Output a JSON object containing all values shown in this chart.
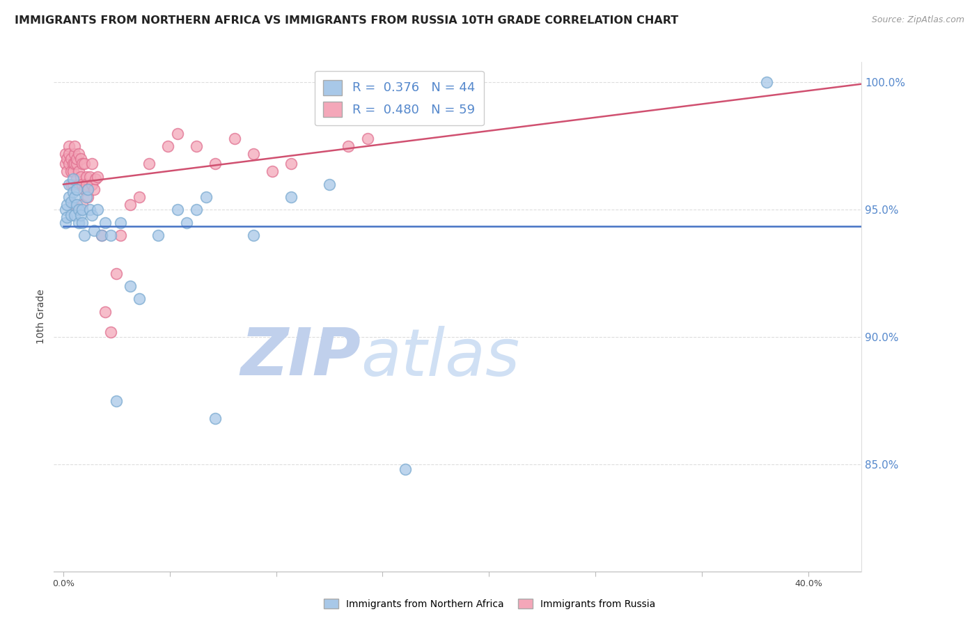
{
  "title": "IMMIGRANTS FROM NORTHERN AFRICA VS IMMIGRANTS FROM RUSSIA 10TH GRADE CORRELATION CHART",
  "source": "Source: ZipAtlas.com",
  "ylabel": "10th Grade",
  "watermark_zip": "ZIP",
  "watermark_atlas": "atlas",
  "series": [
    {
      "name": "Immigrants from Northern Africa",
      "R": 0.376,
      "N": 44,
      "color": "#A8C8E8",
      "edge_color": "#7AAAD0",
      "line_color": "#4472C4",
      "x": [
        0.001,
        0.001,
        0.002,
        0.002,
        0.003,
        0.003,
        0.004,
        0.004,
        0.005,
        0.005,
        0.006,
        0.006,
        0.007,
        0.007,
        0.008,
        0.008,
        0.009,
        0.01,
        0.01,
        0.011,
        0.012,
        0.013,
        0.014,
        0.015,
        0.016,
        0.018,
        0.02,
        0.022,
        0.025,
        0.028,
        0.03,
        0.035,
        0.04,
        0.05,
        0.06,
        0.065,
        0.07,
        0.075,
        0.08,
        0.1,
        0.12,
        0.14,
        0.18,
        0.37
      ],
      "y": [
        0.95,
        0.945,
        0.952,
        0.947,
        0.955,
        0.96,
        0.953,
        0.948,
        0.957,
        0.962,
        0.955,
        0.948,
        0.952,
        0.958,
        0.945,
        0.95,
        0.948,
        0.945,
        0.95,
        0.94,
        0.955,
        0.958,
        0.95,
        0.948,
        0.942,
        0.95,
        0.94,
        0.945,
        0.94,
        0.875,
        0.945,
        0.92,
        0.915,
        0.94,
        0.95,
        0.945,
        0.95,
        0.955,
        0.868,
        0.94,
        0.955,
        0.96,
        0.848,
        1.0
      ]
    },
    {
      "name": "Immigrants from Russia",
      "R": 0.48,
      "N": 59,
      "color": "#F4A7B9",
      "edge_color": "#E07090",
      "line_color": "#D05070",
      "x": [
        0.001,
        0.001,
        0.002,
        0.002,
        0.003,
        0.003,
        0.003,
        0.004,
        0.004,
        0.004,
        0.005,
        0.005,
        0.005,
        0.005,
        0.006,
        0.006,
        0.006,
        0.007,
        0.007,
        0.007,
        0.008,
        0.008,
        0.008,
        0.009,
        0.009,
        0.01,
        0.01,
        0.01,
        0.011,
        0.011,
        0.012,
        0.012,
        0.013,
        0.013,
        0.014,
        0.015,
        0.015,
        0.016,
        0.017,
        0.018,
        0.02,
        0.022,
        0.025,
        0.028,
        0.03,
        0.035,
        0.04,
        0.045,
        0.055,
        0.06,
        0.07,
        0.08,
        0.09,
        0.1,
        0.11,
        0.12,
        0.15,
        0.16,
        0.2
      ],
      "y": [
        0.968,
        0.972,
        0.965,
        0.97,
        0.968,
        0.975,
        0.972,
        0.965,
        0.96,
        0.97,
        0.968,
        0.96,
        0.952,
        0.965,
        0.972,
        0.975,
        0.968,
        0.968,
        0.962,
        0.97,
        0.965,
        0.972,
        0.96,
        0.963,
        0.97,
        0.968,
        0.96,
        0.952,
        0.958,
        0.968,
        0.963,
        0.96,
        0.958,
        0.955,
        0.963,
        0.96,
        0.968,
        0.958,
        0.962,
        0.963,
        0.94,
        0.91,
        0.902,
        0.925,
        0.94,
        0.952,
        0.955,
        0.968,
        0.975,
        0.98,
        0.975,
        0.968,
        0.978,
        0.972,
        0.965,
        0.968,
        0.975,
        0.978,
        0.988
      ]
    }
  ],
  "ylim": [
    0.808,
    1.008
  ],
  "xlim": [
    -0.005,
    0.42
  ],
  "yticks": [
    0.85,
    0.9,
    0.95,
    1.0
  ],
  "ytick_labels": [
    "85.0%",
    "90.0%",
    "95.0%",
    "100.0%"
  ],
  "xtick_positions": [
    0.0,
    0.056,
    0.112,
    0.168,
    0.224,
    0.28,
    0.336,
    0.392
  ],
  "xtick_labels": [
    "0.0%",
    "",
    "",
    "",
    "",
    "",
    "",
    "40.0%"
  ],
  "background_color": "#FFFFFF",
  "title_fontsize": 11.5,
  "legend_fontsize": 13,
  "watermark_color_zip": "#C8D8F0",
  "watermark_color_atlas": "#D8E8F8",
  "watermark_fontsize": 68,
  "source_color": "#999999",
  "right_axis_color": "#5588CC",
  "grid_color": "#DDDDDD",
  "scatter_size": 130,
  "scatter_alpha": 0.75
}
